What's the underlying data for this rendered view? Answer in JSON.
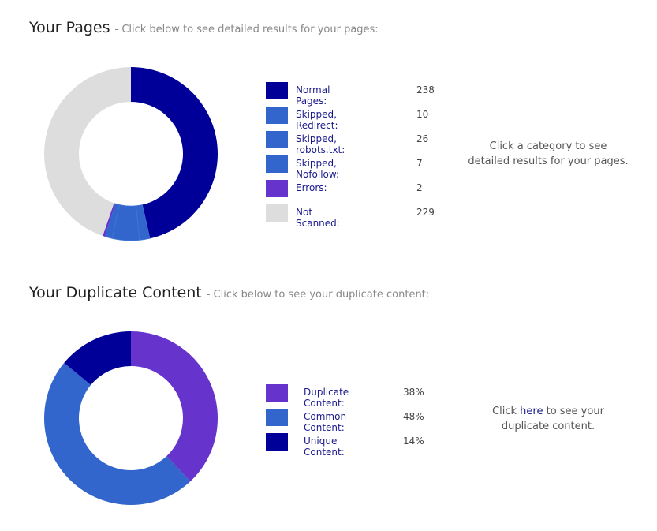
{
  "pages_section": {
    "title": "Your Pages",
    "subtitle": "-  Click below to see detailed results for your pages:",
    "note_line1": "Click a category to see",
    "note_line2": "detailed results for your pages."
  },
  "duplicate_section": {
    "title": "Your Duplicate Content",
    "subtitle": "-  Click below to see your duplicate content:",
    "note_pre": "Click ",
    "note_link": "here",
    "note_post": " to see your",
    "note_line2": "duplicate content."
  },
  "chart_data": [
    {
      "type": "pie",
      "donut": true,
      "categories": [
        "Normal Pages:",
        "Skipped, Redirect:",
        "Skipped, robots.txt:",
        "Skipped, Nofollow:",
        "Errors:",
        "Not Scanned:"
      ],
      "values": [
        238,
        10,
        26,
        7,
        2,
        229
      ],
      "display_values": [
        "238",
        "10",
        "26",
        "7",
        "2",
        "229"
      ],
      "colors": [
        "#000099",
        "#3366cc",
        "#3366cc",
        "#3366cc",
        "#6633cc",
        "#dddddd"
      ]
    },
    {
      "type": "pie",
      "donut": true,
      "categories": [
        "Duplicate Content:",
        "Common Content:",
        "Unique Content:"
      ],
      "values": [
        38,
        48,
        14
      ],
      "display_values": [
        "38%",
        "48%",
        "14%"
      ],
      "colors": [
        "#6633cc",
        "#3366cc",
        "#000099"
      ]
    }
  ]
}
